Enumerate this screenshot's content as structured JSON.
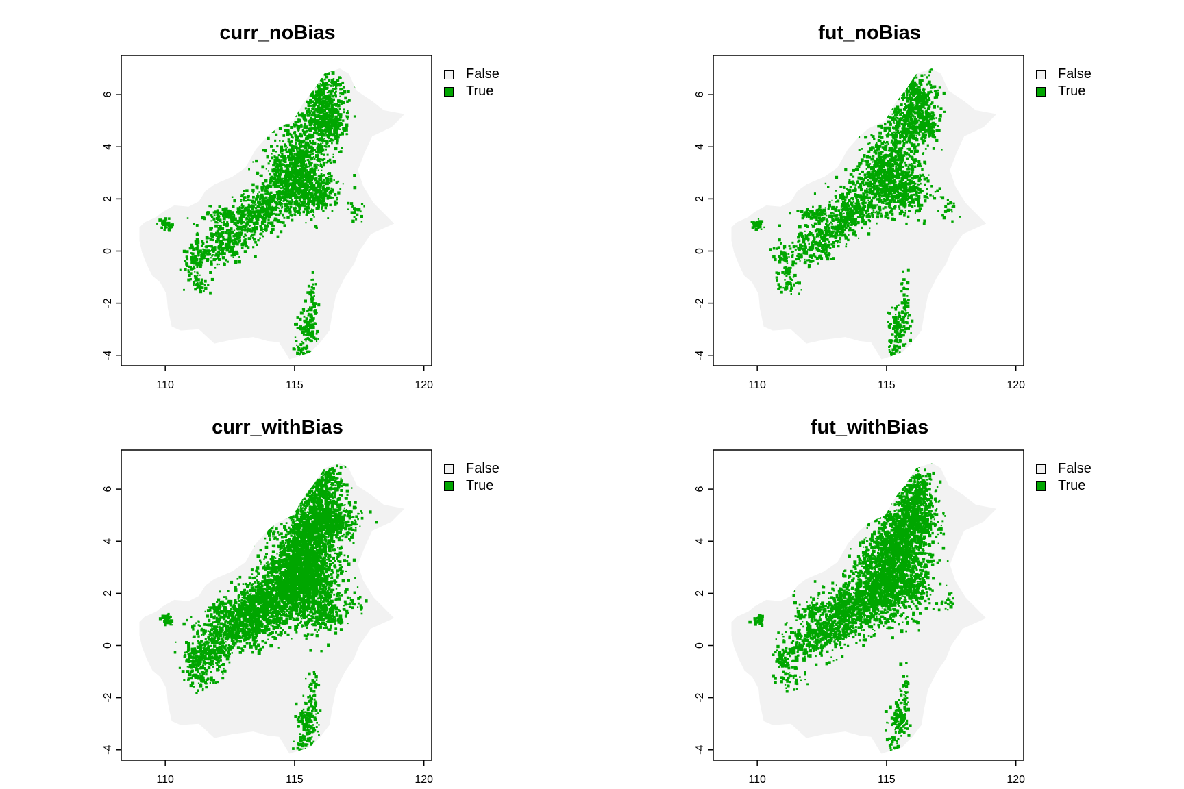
{
  "panels": [
    {
      "title": "curr_noBias",
      "distribution": "noBias"
    },
    {
      "title": "fut_noBias",
      "distribution": "futNoBias"
    },
    {
      "title": "curr_withBias",
      "distribution": "withBias"
    },
    {
      "title": "fut_withBias",
      "distribution": "futWithBias"
    }
  ],
  "legend": [
    {
      "label": "False",
      "color": "#f2f2f2"
    },
    {
      "label": "True",
      "color": "#00a600"
    }
  ],
  "axes": {
    "x_ticks": [
      "110",
      "115",
      "120"
    ],
    "y_ticks": [
      "6",
      "4",
      "2",
      "0",
      "-2",
      "-4"
    ],
    "x_range": [
      108.3,
      120.3
    ],
    "y_range": [
      -4.4,
      7.5
    ]
  },
  "colors": {
    "background_land": "#f2f2f2",
    "presence": "#00a600",
    "frame": "#000000"
  }
}
